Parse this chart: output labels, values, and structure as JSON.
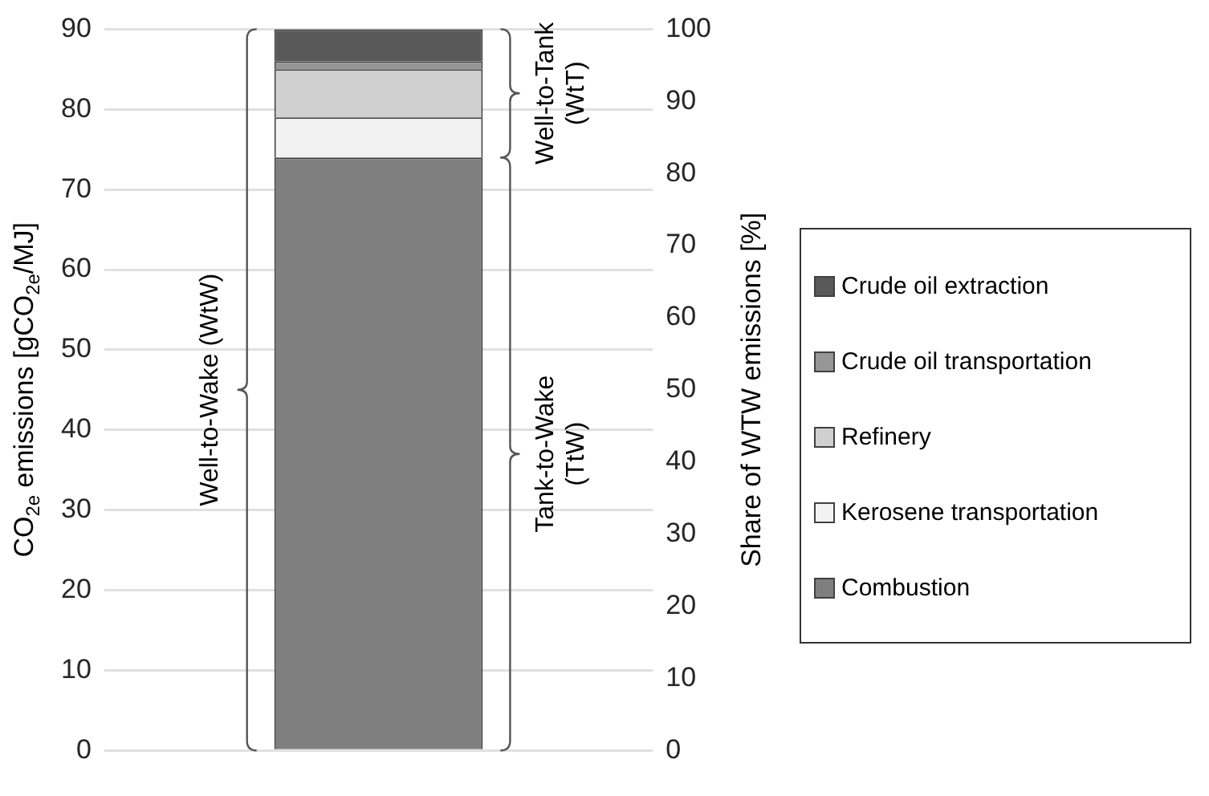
{
  "chart_data": {
    "type": "bar",
    "stacked": true,
    "categories": [
      null
    ],
    "ylabel": "CO$_{2e}$ emissions [gCO$_{2e}$/MJ]",
    "y2label": "Share of WTW emissions [%]",
    "series": [
      {
        "name": "Combustion",
        "color": "#7f7f7f",
        "values": [
          74
        ]
      },
      {
        "name": "Kerosene transportation",
        "color": "#f2f2f2",
        "values": [
          5
        ]
      },
      {
        "name": "Refinery",
        "color": "#d0d0d0",
        "values": [
          6
        ]
      },
      {
        "name": "Crude oil transportation",
        "color": "#969696",
        "values": [
          1
        ]
      },
      {
        "name": "Crude oil extraction",
        "color": "#595959",
        "values": [
          4
        ]
      }
    ],
    "ylim": [
      0,
      90
    ],
    "yticks": [
      0,
      10,
      20,
      30,
      40,
      50,
      60,
      70,
      80,
      90
    ],
    "y2lim": [
      0,
      100
    ],
    "y2ticks": [
      0,
      10,
      20,
      30,
      40,
      50,
      60,
      70,
      80,
      90,
      100
    ],
    "grid": "y",
    "legend": "right",
    "annotations": [
      "Well-to-Wake (WtW)",
      "Well-to-Tank (WtT)",
      "Tank-to-Wake (TtW)"
    ]
  }
}
